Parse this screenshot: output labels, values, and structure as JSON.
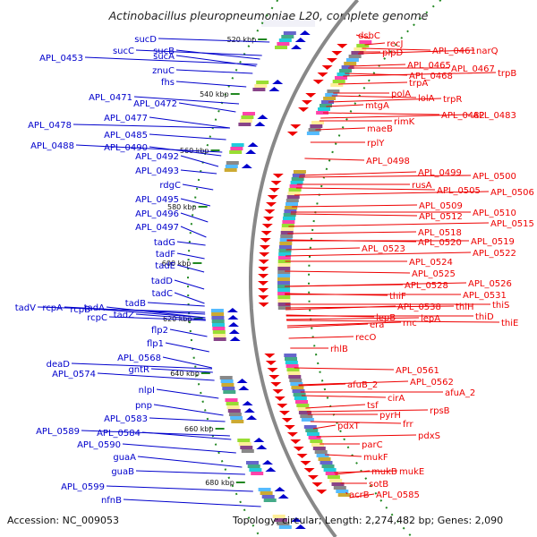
{
  "header": {
    "title": "Actinobacillus pleuropneumoniae L20, complete genome"
  },
  "footer": {
    "accession": "Accession: NC_009053",
    "summary": "Topology: circular; Length: 2,274,482 bp; Genes: 2,090"
  },
  "colors": {
    "left_strand": "#0000cc",
    "right_strand": "#ee0000",
    "backbone": "#888888",
    "tick": "#228822"
  },
  "scale_ticks": [
    "520 kbp",
    "540 kbp",
    "560 kbp",
    "580 kbp",
    "600 kbp",
    "620 kbp",
    "640 kbp",
    "660 kbp",
    "680 kbp"
  ],
  "left_genes": [
    "sucD",
    "sucC",
    "APL_0453",
    "sucB",
    "sucA",
    "znuC",
    "fhs",
    "APL_0471",
    "APL_0472",
    "APL_0477",
    "APL_0478",
    "APL_0485",
    "APL_0488",
    "APL_0490",
    "APL_0492",
    "APL_0493",
    "rdgC",
    "APL_0495",
    "APL_0496",
    "APL_0497",
    "tadG",
    "tadF",
    "tadE",
    "tadD",
    "tadC",
    "tadB",
    "tadV",
    "rcpA",
    "rcpB",
    "tadA",
    "rcpC",
    "tadZ",
    "flp2",
    "flp1",
    "APL_0568",
    "gntR",
    "deaD",
    "APL_0574",
    "nlpI",
    "pnp",
    "APL_0583",
    "APL_0589",
    "APL_0584",
    "APL_0590",
    "guaA",
    "guaB",
    "APL_0599",
    "nfnB"
  ],
  "right_genes": [
    "dsbC",
    "recJ",
    "plpD",
    "APL_0461",
    "narQ",
    "APL_0465",
    "APL_0467",
    "APL_0468",
    "trpB",
    "trpA",
    "polA",
    "lolA",
    "trpR",
    "mtgA",
    "rimK",
    "APL_0482",
    "APL_0483",
    "maeB",
    "rplY",
    "APL_0498",
    "APL_0499",
    "APL_0500",
    "rusA",
    "APL_0505",
    "APL_0506",
    "APL_0509",
    "APL_0510",
    "APL_0512",
    "APL_0515",
    "APL_0518",
    "APL_0519",
    "APL_0520",
    "APL_0522",
    "APL_0523",
    "APL_0524",
    "APL_0525",
    "APL_0526",
    "APL_0528",
    "APL_0531",
    "thiF",
    "APL_0538",
    "thiH",
    "thiS",
    "lepB",
    "rnc",
    "lepA",
    "thiD",
    "thiE",
    "era",
    "recO",
    "rhlB",
    "APL_0561",
    "APL_0562",
    "afuB_2",
    "afuA_2",
    "cirA",
    "tsf",
    "rpsB",
    "pyrH",
    "frr",
    "pdxT",
    "pdxS",
    "parC",
    "mukF",
    "mukB",
    "mukE",
    "sotB",
    "acrB",
    "APL_0585"
  ]
}
